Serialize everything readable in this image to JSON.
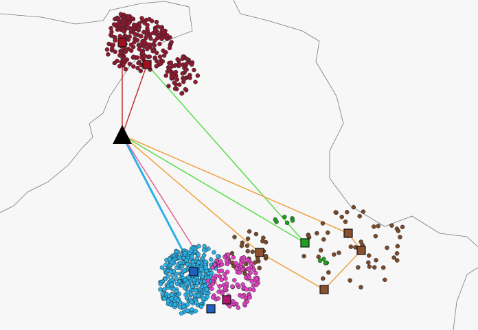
{
  "map": {
    "clusters": [
      {
        "color": "#8e1a30"
      },
      {
        "color": "#1f9e1f"
      },
      {
        "color": "#7a4a2c"
      },
      {
        "color": "#2bb0e6"
      },
      {
        "color": "#e040c0"
      }
    ]
  }
}
